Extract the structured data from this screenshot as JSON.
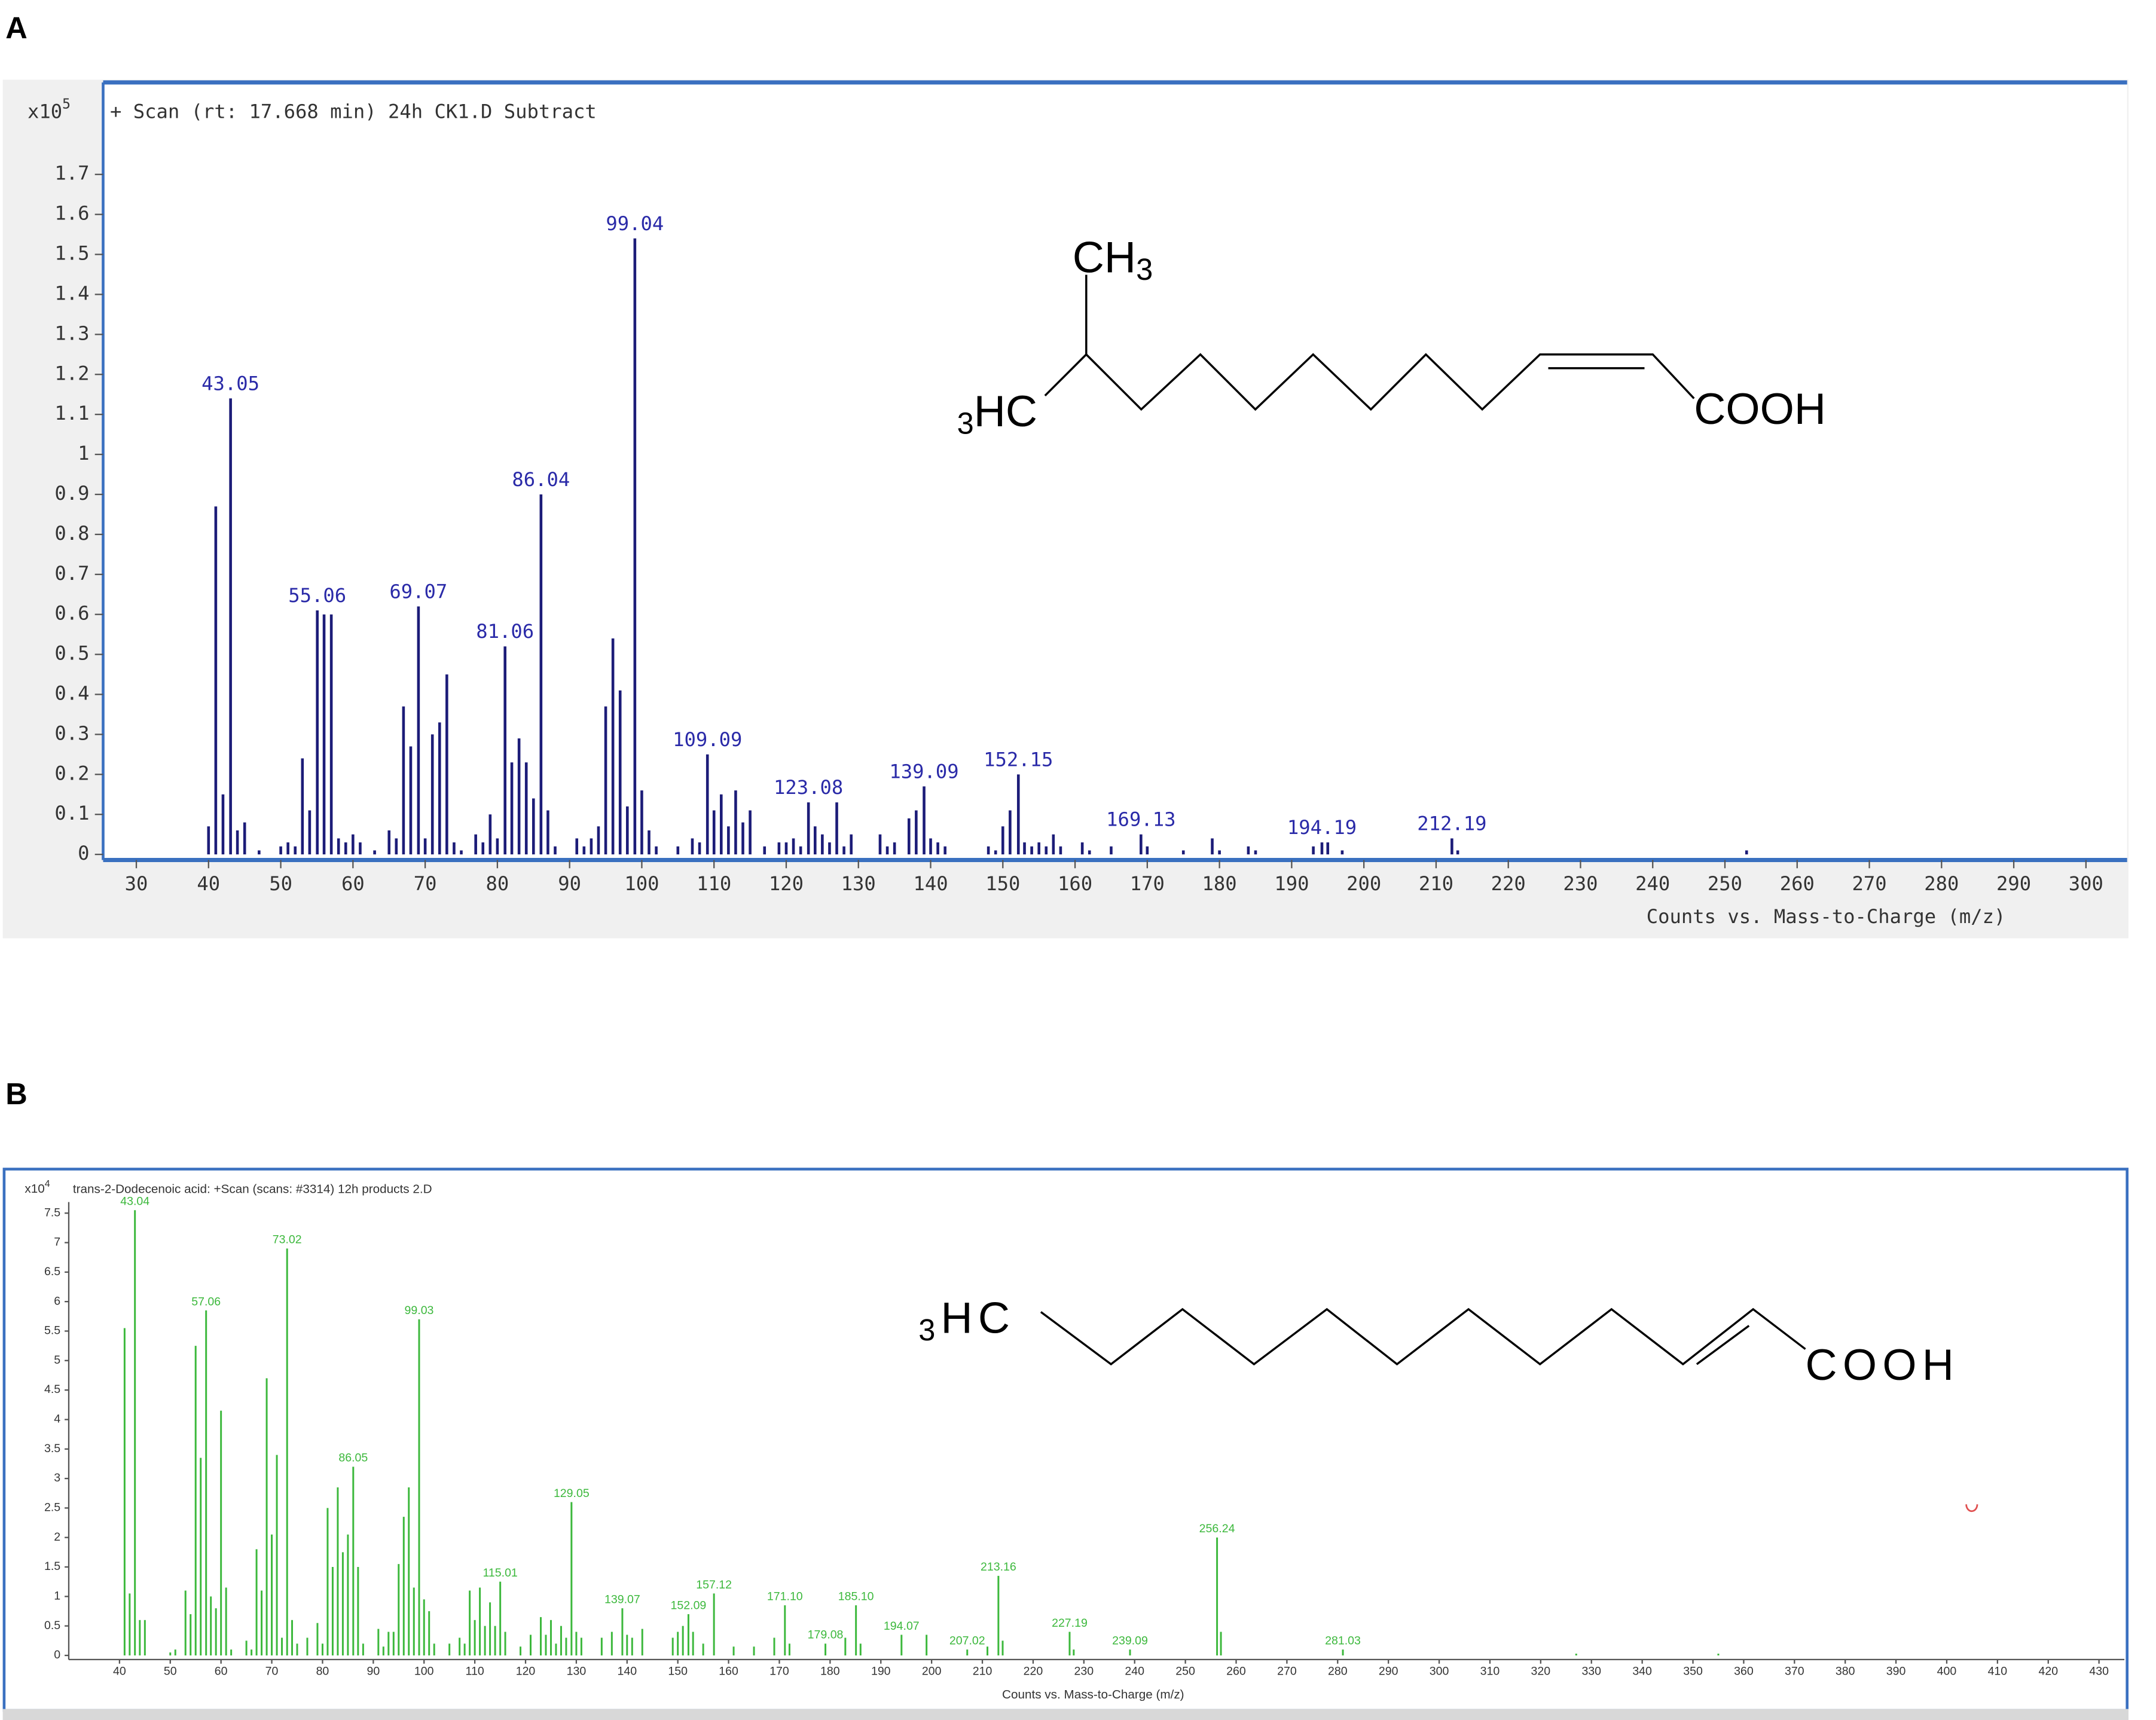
{
  "chart_data": [
    {
      "type": "bar",
      "panel": "A",
      "title": "+ Scan (rt: 17.668 min) 24h CK1.D Subtract",
      "y_multiplier": "x10",
      "y_multiplier_exp": "5",
      "x_label": "Counts vs. Mass-to-Charge (m/z)",
      "color": "#1c1c78",
      "label_color": "#2a2aa8",
      "xlim": [
        25.4,
        305.7
      ],
      "xticks": [
        30,
        40,
        50,
        60,
        70,
        80,
        90,
        100,
        110,
        120,
        130,
        140,
        150,
        160,
        170,
        180,
        190,
        200,
        210,
        220,
        230,
        240,
        250,
        260,
        270,
        280,
        290,
        300
      ],
      "ylim": [
        -0.014,
        1.93
      ],
      "yticks": [
        0,
        0.1,
        0.2,
        0.3,
        0.4,
        0.5,
        0.6,
        0.7,
        0.8,
        0.9,
        1,
        1.1,
        1.2,
        1.3,
        1.4,
        1.5,
        1.6,
        1.7
      ],
      "x": [
        40,
        41,
        42,
        43.05,
        44,
        45,
        47,
        50,
        51,
        52,
        53,
        54,
        55.06,
        56,
        57,
        58,
        59,
        60,
        61,
        63,
        65,
        66,
        67,
        68,
        69.07,
        70,
        71,
        72,
        73,
        74,
        75,
        77,
        78,
        79,
        80,
        81.06,
        82,
        83,
        84,
        85,
        86.04,
        87,
        88,
        91,
        92,
        93,
        94,
        95,
        96,
        97,
        98,
        99.04,
        100,
        101,
        102,
        105,
        107,
        108,
        109.09,
        110,
        111,
        112,
        113,
        114,
        115,
        117,
        119,
        120,
        121,
        122,
        123.08,
        124,
        125,
        126,
        127,
        128,
        129,
        133,
        134,
        135,
        137,
        138,
        139.09,
        140,
        141,
        142,
        148,
        149,
        150,
        151,
        152.15,
        153,
        154,
        155,
        156,
        157,
        158,
        161,
        162,
        165,
        169.13,
        170,
        175,
        179,
        180,
        184,
        185,
        193,
        194.19,
        195,
        197,
        212.19,
        213,
        253
      ],
      "values": [
        0.07,
        0.87,
        0.15,
        1.14,
        0.06,
        0.08,
        0.01,
        0.02,
        0.03,
        0.02,
        0.24,
        0.11,
        0.61,
        0.6,
        0.6,
        0.04,
        0.03,
        0.05,
        0.03,
        0.01,
        0.06,
        0.04,
        0.37,
        0.27,
        0.62,
        0.04,
        0.3,
        0.33,
        0.45,
        0.03,
        0.01,
        0.05,
        0.03,
        0.1,
        0.04,
        0.52,
        0.23,
        0.29,
        0.23,
        0.14,
        0.9,
        0.11,
        0.02,
        0.04,
        0.02,
        0.04,
        0.07,
        0.37,
        0.54,
        0.41,
        0.12,
        1.54,
        0.16,
        0.06,
        0.02,
        0.02,
        0.04,
        0.03,
        0.25,
        0.11,
        0.15,
        0.07,
        0.16,
        0.08,
        0.11,
        0.02,
        0.03,
        0.03,
        0.04,
        0.02,
        0.13,
        0.07,
        0.05,
        0.03,
        0.13,
        0.02,
        0.05,
        0.05,
        0.02,
        0.03,
        0.09,
        0.11,
        0.17,
        0.04,
        0.03,
        0.02,
        0.02,
        0.01,
        0.07,
        0.11,
        0.2,
        0.03,
        0.02,
        0.03,
        0.02,
        0.05,
        0.02,
        0.03,
        0.01,
        0.02,
        0.05,
        0.02,
        0.01,
        0.04,
        0.01,
        0.02,
        0.01,
        0.02,
        0.03,
        0.03,
        0.01,
        0.04,
        0.01,
        0.01
      ],
      "peak_labels": [
        null,
        null,
        null,
        "43.05",
        null,
        null,
        null,
        null,
        null,
        null,
        null,
        null,
        "55.06",
        null,
        null,
        null,
        null,
        null,
        null,
        null,
        null,
        null,
        null,
        null,
        "69.07",
        null,
        null,
        null,
        null,
        null,
        null,
        null,
        null,
        null,
        null,
        "81.06",
        null,
        null,
        null,
        null,
        "86.04",
        null,
        null,
        null,
        null,
        null,
        null,
        null,
        null,
        null,
        null,
        "99.04",
        null,
        null,
        null,
        null,
        null,
        null,
        "109.09",
        null,
        null,
        null,
        null,
        null,
        null,
        null,
        null,
        null,
        null,
        null,
        "123.08",
        null,
        null,
        null,
        null,
        null,
        null,
        null,
        null,
        null,
        null,
        null,
        "139.09",
        null,
        null,
        null,
        null,
        null,
        null,
        null,
        "152.15",
        null,
        null,
        null,
        null,
        null,
        null,
        null,
        null,
        null,
        "169.13",
        null,
        null,
        null,
        null,
        null,
        null,
        null,
        "194.19",
        null,
        null,
        "212.19",
        null,
        null
      ],
      "structure": {
        "top": {
          "text": "CH",
          "sub": "3"
        },
        "left": {
          "sub": "3",
          "text": "HC"
        },
        "right": "COOH"
      }
    },
    {
      "type": "bar",
      "panel": "B",
      "title": "trans-2-Dodecenoic acid: +Scan (scans: #3314) 12h products 2.D",
      "y_multiplier": "x10",
      "y_multiplier_exp": "4",
      "x_label": "Counts vs. Mass-to-Charge (m/z)",
      "color": "#3cb83c",
      "label_color": "#3cb83c",
      "xlim": [
        30,
        435
      ],
      "xticks": [
        40,
        50,
        60,
        70,
        80,
        90,
        100,
        110,
        120,
        130,
        140,
        150,
        160,
        170,
        180,
        190,
        200,
        210,
        220,
        230,
        240,
        250,
        260,
        270,
        280,
        290,
        300,
        310,
        320,
        330,
        340,
        350,
        360,
        370,
        380,
        390,
        400,
        410,
        420,
        430
      ],
      "ylim": [
        -0.07,
        8.2
      ],
      "yticks": [
        0,
        0.5,
        1,
        1.5,
        2,
        2.5,
        3,
        3.5,
        4,
        4.5,
        5,
        5.5,
        6,
        6.5,
        7,
        7.5
      ],
      "x": [
        41,
        42,
        43.04,
        44,
        45,
        50,
        51,
        53,
        54,
        55,
        56,
        57.06,
        58,
        59,
        60,
        61,
        62,
        65,
        66,
        67,
        68,
        69,
        70,
        71,
        72,
        73.02,
        74,
        75,
        77,
        79,
        80,
        81,
        82,
        83,
        84,
        85,
        86.05,
        87,
        88,
        91,
        92,
        93,
        94,
        95,
        96,
        97,
        98,
        99.03,
        100,
        101,
        102,
        105,
        107,
        108,
        109,
        110,
        111,
        112,
        113,
        114,
        115.01,
        116,
        119,
        121,
        123,
        124,
        125,
        126,
        127,
        128,
        129.05,
        130,
        131,
        135,
        137,
        139.07,
        140,
        141,
        143,
        149,
        150,
        151,
        152.09,
        153,
        155,
        157.12,
        161,
        165,
        169,
        171.1,
        172,
        179.08,
        183,
        185.1,
        186,
        194.07,
        199,
        207.02,
        211,
        213.16,
        214,
        227.19,
        228,
        239.09,
        256.24,
        257,
        281.03,
        327,
        355
      ],
      "values": [
        5.55,
        1.05,
        7.55,
        0.6,
        0.6,
        0.05,
        0.1,
        1.1,
        0.7,
        5.25,
        3.35,
        5.85,
        1.0,
        0.8,
        4.15,
        1.15,
        0.1,
        0.25,
        0.1,
        1.8,
        1.1,
        4.7,
        2.05,
        3.4,
        0.3,
        6.9,
        0.6,
        0.2,
        0.3,
        0.55,
        0.2,
        2.5,
        1.5,
        2.85,
        1.75,
        2.05,
        3.2,
        1.5,
        0.2,
        0.45,
        0.15,
        0.4,
        0.4,
        1.55,
        2.35,
        2.85,
        1.15,
        5.7,
        0.95,
        0.75,
        0.2,
        0.2,
        0.3,
        0.2,
        1.1,
        0.6,
        1.15,
        0.5,
        0.9,
        0.5,
        1.25,
        0.4,
        0.15,
        0.35,
        0.65,
        0.35,
        0.6,
        0.2,
        0.5,
        0.3,
        2.6,
        0.4,
        0.3,
        0.3,
        0.4,
        0.8,
        0.35,
        0.3,
        0.45,
        0.3,
        0.4,
        0.5,
        0.7,
        0.4,
        0.2,
        1.05,
        0.15,
        0.15,
        0.3,
        0.85,
        0.2,
        0.2,
        0.3,
        0.85,
        0.2,
        0.35,
        0.35,
        0.1,
        0.15,
        1.35,
        0.25,
        0.4,
        0.1,
        0.1,
        2.0,
        0.4,
        0.1,
        0.03,
        0.03
      ],
      "peak_labels": [
        null,
        null,
        "43.04",
        null,
        null,
        null,
        null,
        null,
        null,
        null,
        null,
        "57.06",
        null,
        null,
        null,
        null,
        null,
        null,
        null,
        null,
        null,
        null,
        null,
        null,
        null,
        "73.02",
        null,
        null,
        null,
        null,
        null,
        null,
        null,
        null,
        null,
        null,
        "86.05",
        null,
        null,
        null,
        null,
        null,
        null,
        null,
        null,
        null,
        null,
        "99.03",
        null,
        null,
        null,
        null,
        null,
        null,
        null,
        null,
        null,
        null,
        null,
        null,
        "115.01",
        null,
        null,
        null,
        null,
        null,
        null,
        null,
        null,
        null,
        "129.05",
        null,
        null,
        null,
        null,
        "139.07",
        null,
        null,
        null,
        null,
        null,
        null,
        "152.09",
        null,
        null,
        "157.12",
        null,
        null,
        null,
        "171.10",
        null,
        "179.08",
        null,
        "185.10",
        null,
        "194.07",
        null,
        "207.02",
        null,
        "213.16",
        null,
        "227.19",
        null,
        "239.09",
        "256.24",
        null,
        "281.03",
        null,
        null
      ],
      "structure": {
        "left": {
          "sub": "3",
          "text": "HC"
        },
        "right": "COOH"
      }
    }
  ]
}
